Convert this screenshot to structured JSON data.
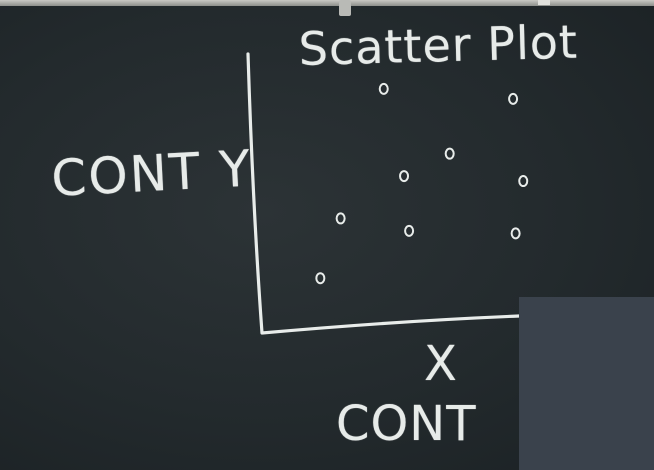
{
  "board": {
    "title": "Scatter Plot",
    "y_axis_label": "CONT Y",
    "x_axis_symbol": "X",
    "x_axis_label": "CONT"
  },
  "chart_data": {
    "type": "scatter",
    "title": "Scatter Plot",
    "xlabel": "X CONT",
    "ylabel": "CONT Y",
    "points": [
      {
        "x": 0.23,
        "y": 0.22
      },
      {
        "x": 0.31,
        "y": 0.46
      },
      {
        "x": 0.48,
        "y": 0.98
      },
      {
        "x": 0.56,
        "y": 0.63
      },
      {
        "x": 0.58,
        "y": 0.41
      },
      {
        "x": 0.74,
        "y": 0.72
      },
      {
        "x": 0.99,
        "y": 0.94
      },
      {
        "x": 1.0,
        "y": 0.4
      },
      {
        "x": 1.03,
        "y": 0.61
      }
    ],
    "xlim": [
      0,
      1.1
    ],
    "ylim": [
      0,
      1.1
    ],
    "grid": false
  }
}
